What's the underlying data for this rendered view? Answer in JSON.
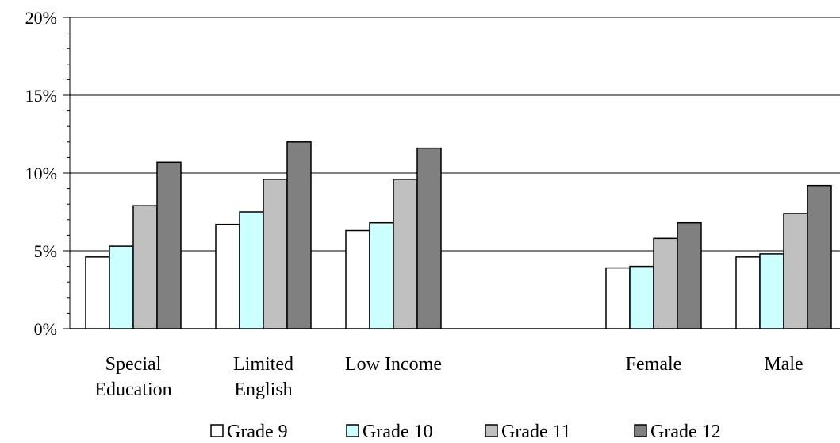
{
  "chart_data": {
    "type": "bar",
    "title": "",
    "xlabel": "",
    "ylabel": "",
    "ylim": [
      0,
      20
    ],
    "yticks": [
      "0%",
      "5%",
      "10%",
      "15%",
      "20%"
    ],
    "grid": true,
    "legend_position": "bottom",
    "categories": [
      {
        "lines": [
          "Special",
          "Education"
        ]
      },
      {
        "lines": [
          "Limited",
          "English"
        ]
      },
      {
        "lines": [
          "Low Income"
        ]
      },
      {
        "lines": [
          "Female"
        ]
      },
      {
        "lines": [
          "Male"
        ]
      }
    ],
    "category_slots": [
      0,
      1,
      2,
      4,
      5
    ],
    "series": [
      {
        "name": "Grade 9",
        "color": "#ffffff",
        "values": [
          4.6,
          6.7,
          6.3,
          3.9,
          4.6
        ]
      },
      {
        "name": "Grade 10",
        "color": "#ccffff",
        "values": [
          5.3,
          7.5,
          6.8,
          4.0,
          4.8
        ]
      },
      {
        "name": "Grade 11",
        "color": "#c0c0c0",
        "values": [
          7.9,
          9.6,
          9.6,
          5.8,
          7.4
        ]
      },
      {
        "name": "Grade 12",
        "color": "#808080",
        "values": [
          10.7,
          12.0,
          11.6,
          6.8,
          9.2
        ]
      }
    ]
  }
}
